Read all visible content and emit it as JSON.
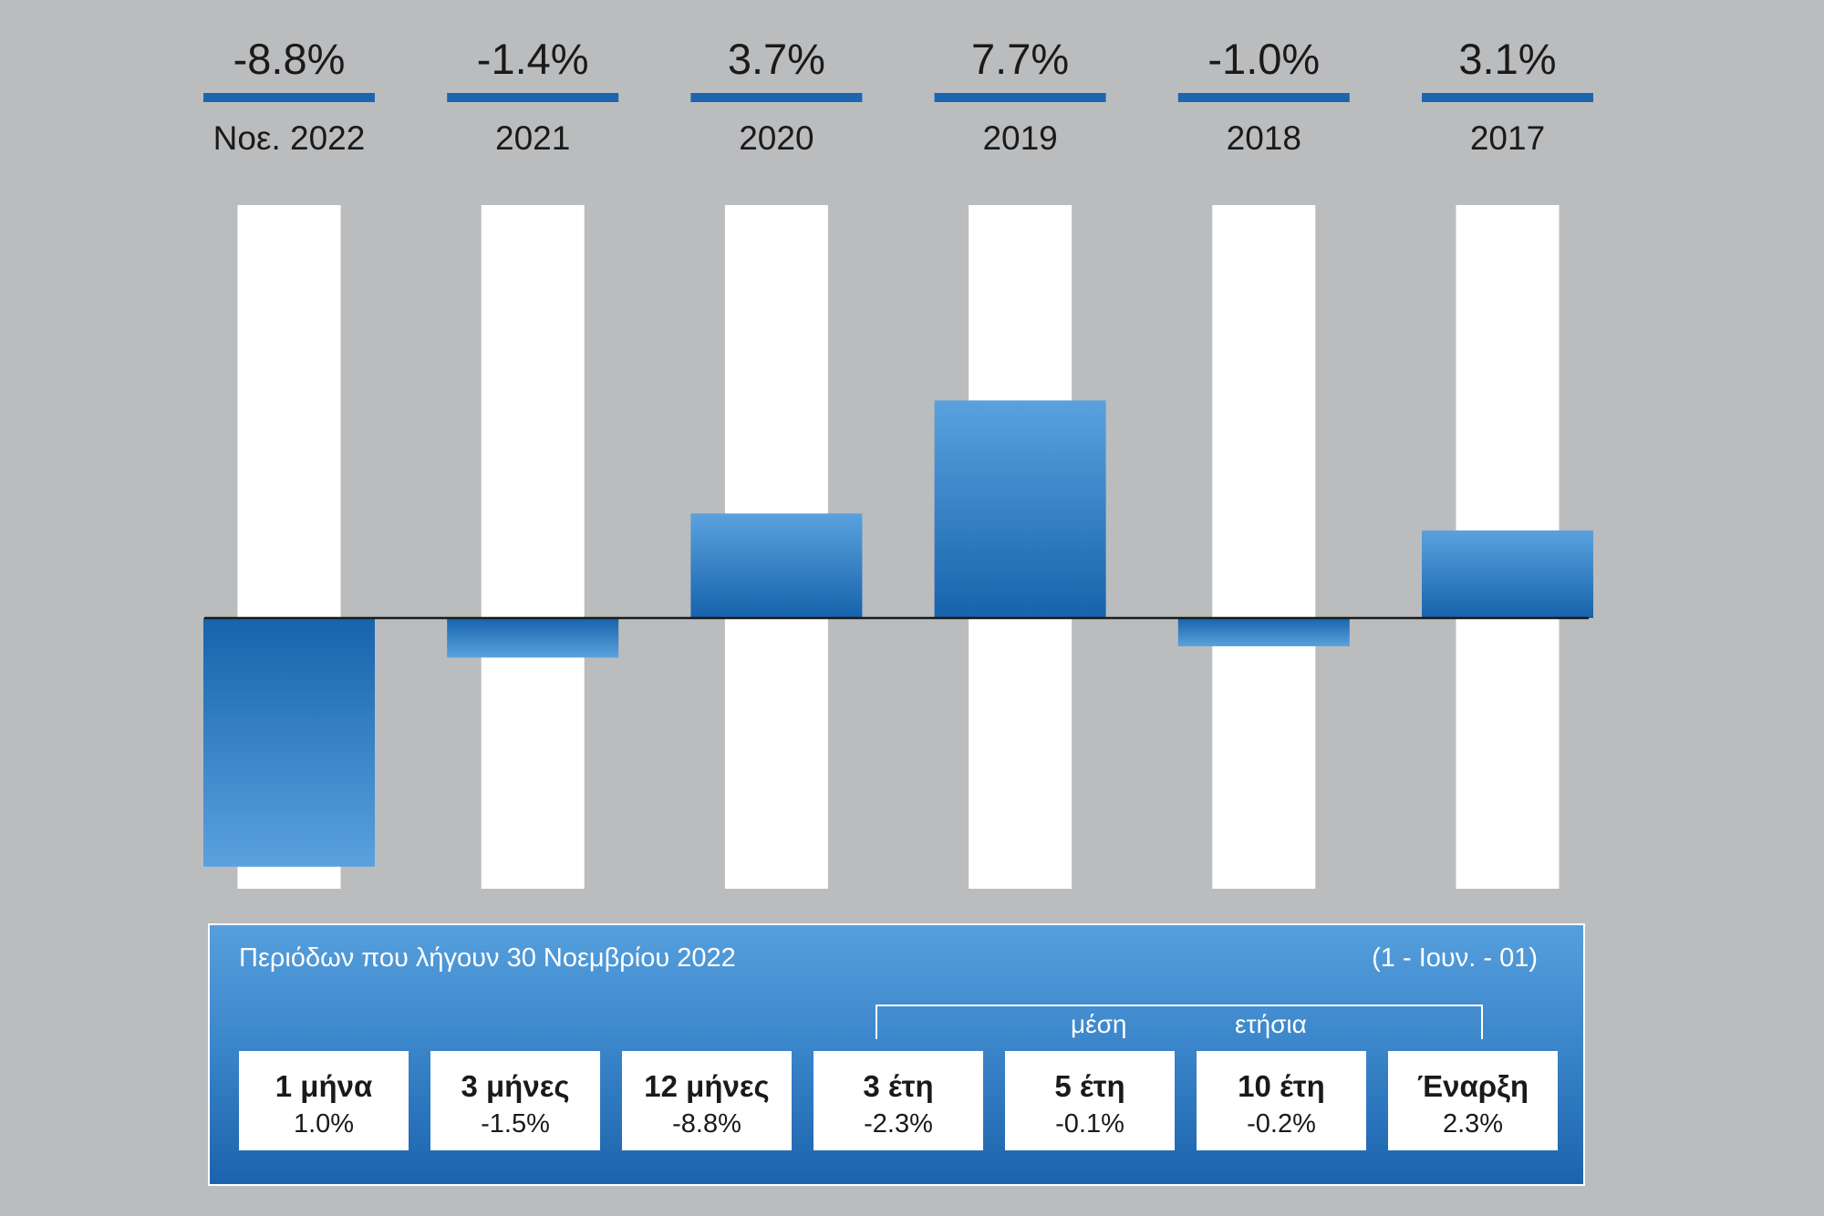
{
  "chart_data": {
    "type": "bar",
    "categories": [
      "Νοε. 2022",
      "2021",
      "2020",
      "2019",
      "2018",
      "2017"
    ],
    "values": [
      -8.8,
      -1.4,
      3.7,
      7.7,
      -1.0,
      3.1
    ],
    "value_labels": [
      "-8.8%",
      "-1.4%",
      "3.7%",
      "7.7%",
      "-1.0%",
      "3.1%"
    ],
    "ylim": [
      -10,
      12
    ],
    "grid": false,
    "colors": {
      "bar_dark": "#1763ac",
      "bar_light": "#5aa2de",
      "underline": "#1c66b0",
      "background_column": "#ffffff",
      "zero_line": "#1a1a1a"
    }
  },
  "summary": {
    "title": "Περιόδων που λήγουν 30 Νοεμβρίου 2022",
    "since": "(1 - Ιουν. - 01)",
    "avg_word_1": "μέση",
    "avg_word_2": "ετήσια",
    "periods": [
      {
        "label": "1 μήνα",
        "value": "1.0%"
      },
      {
        "label": "3 μήνες",
        "value": "-1.5%"
      },
      {
        "label": "12 μήνες",
        "value": "-8.8%"
      },
      {
        "label": "3 έτη",
        "value": "-2.3%"
      },
      {
        "label": "5 έτη",
        "value": "-0.1%"
      },
      {
        "label": "10 έτη",
        "value": "-0.2%"
      },
      {
        "label": "Έναρξη",
        "value": "2.3%"
      }
    ]
  }
}
